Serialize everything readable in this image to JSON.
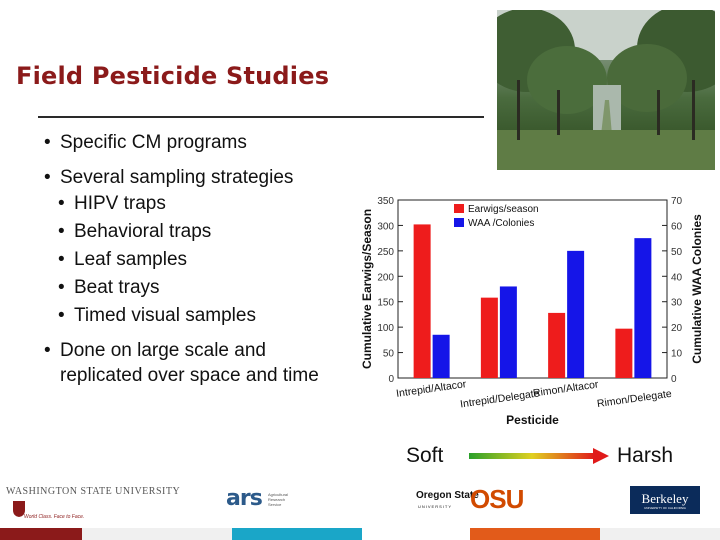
{
  "slide": {
    "title": "Field Pesticide Studies",
    "bullets": [
      "Specific CM programs",
      "Several sampling strategies",
      "HIPV traps",
      "Behavioral traps",
      "Leaf samples",
      "Beat trays",
      "Timed visual samples",
      "Done on large scale and replicated over space and time"
    ],
    "soft_label": "Soft",
    "harsh_label": "Harsh"
  },
  "logos": {
    "wsu_name": "WASHINGTON STATE UNIVERSITY",
    "wsu_tagline": "World Class. Face to Face.",
    "cahnrs_mark": "ars",
    "cahnrs_text": "Agricultural Research Service",
    "osu_name": "Oregon State",
    "osu_univ": "UNIVERSITY",
    "osu_mark": "OSU",
    "berkeley_name": "Berkeley",
    "berkeley_univ": "UNIVERSITY OF CALIFORNIA"
  },
  "colors": {
    "title": "#8b1a1a",
    "earwig_bar": "#ee1c1c",
    "waa_bar": "#1515e8",
    "arrow_start": "#2aa02a",
    "arrow_end": "#e01a1a",
    "strip": [
      "#8b1a1a",
      "#f0f0f0",
      "#1aa6c8",
      "#ffffff",
      "#e25b1a",
      "#f0f0f0"
    ]
  },
  "chart_data": {
    "type": "bar",
    "xlabel": "Pesticide",
    "ylabel": "Cumulative Earwigs/Season",
    "ylabel_right": "Cumulative WAA Colonies",
    "categories": [
      "Intrepid/Altacor",
      "Intrepid/Delegate",
      "Rimon/Altacor",
      "Rimon/Delegate"
    ],
    "series": [
      {
        "name": "Earwigs/season",
        "axis": "left",
        "color": "#ee1c1c",
        "values": [
          302,
          158,
          128,
          97
        ]
      },
      {
        "name": "WAA /Colonies",
        "axis": "right",
        "color": "#1515e8",
        "values": [
          17,
          36,
          50,
          55
        ]
      }
    ],
    "ylim": [
      0,
      350
    ],
    "ylim_right": [
      0,
      70
    ],
    "yticks": [
      "0",
      "50",
      "100",
      "150",
      "200",
      "250",
      "300",
      "350"
    ],
    "yticks_right": [
      "0",
      "10",
      "20",
      "30",
      "40",
      "50",
      "60",
      "70"
    ],
    "legend": "top-left",
    "grid": false
  }
}
